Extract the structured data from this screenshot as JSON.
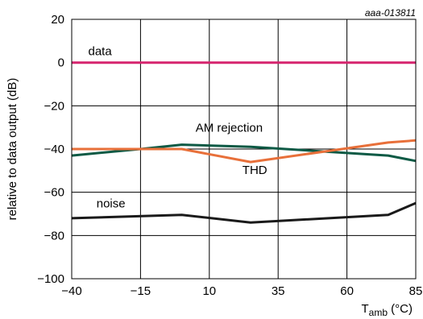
{
  "chart_data": {
    "type": "line",
    "figure_id": "aaa-013811",
    "xlabel_main": "T",
    "xlabel_sub": "amb",
    "xlabel_unit": " (°C)",
    "ylabel": "relative to data output (dB)",
    "xlim": [
      -40,
      85
    ],
    "ylim": [
      -100,
      20
    ],
    "xticks": [
      -40,
      -15,
      10,
      35,
      60,
      85
    ],
    "xtick_labels": [
      "−40",
      "−15",
      "10",
      "35",
      "60",
      "85"
    ],
    "yticks": [
      20,
      0,
      -20,
      -40,
      -60,
      -80,
      -100
    ],
    "ytick_labels": [
      "20",
      "0",
      "−20",
      "−40",
      "−60",
      "−80",
      "−100"
    ],
    "grid": true,
    "series": [
      {
        "name": "data",
        "color": "#d6246e",
        "x": [
          -40,
          -15,
          10,
          35,
          60,
          85
        ],
        "y": [
          0,
          0,
          0,
          0,
          0,
          0
        ]
      },
      {
        "name": "AM rejection",
        "color": "#0d5a45",
        "x": [
          -40,
          -15,
          0,
          25,
          50,
          75,
          85
        ],
        "y": [
          -43,
          -40,
          -38,
          -39,
          -41,
          -43,
          -45.5
        ]
      },
      {
        "name": "THD",
        "color": "#e8703a",
        "x": [
          -40,
          0,
          25,
          75,
          85
        ],
        "y": [
          -40,
          -40,
          -46,
          -37,
          -36
        ]
      },
      {
        "name": "noise",
        "color": "#1a1a1a",
        "x": [
          -40,
          0,
          25,
          75,
          85
        ],
        "y": [
          -72,
          -70.5,
          -74,
          -70.5,
          -65
        ]
      }
    ],
    "series_label_positions": [
      {
        "series": 0,
        "x": -34,
        "y": 3.5
      },
      {
        "series": 1,
        "x": 5,
        "y": -32
      },
      {
        "series": 2,
        "x": 22,
        "y": -51.5
      },
      {
        "series": 3,
        "x": -31,
        "y": -67
      }
    ]
  }
}
